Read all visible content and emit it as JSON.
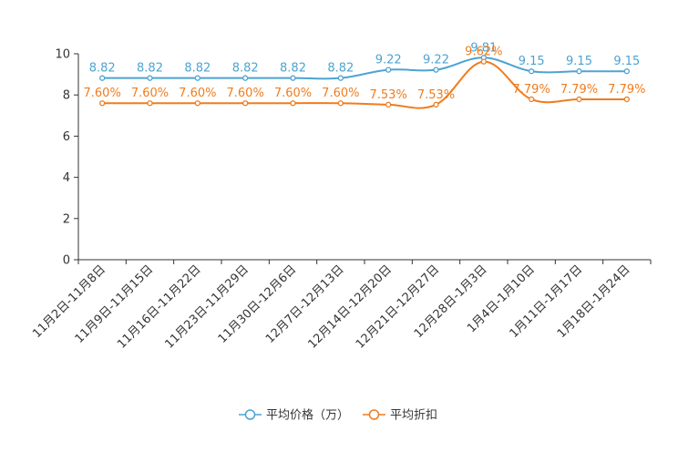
{
  "chart_data": {
    "type": "line",
    "title": "",
    "xlabel": "",
    "ylabel": "",
    "ylim": [
      0,
      10
    ],
    "y_ticks": [
      0,
      2,
      4,
      6,
      8,
      10
    ],
    "grid": false,
    "legend_position": "bottom-center",
    "categories": [
      "11月2日-11月8日",
      "11月9日-11月15日",
      "11月16日-11月22日",
      "11月23日-11月29日",
      "11月30日-12月6日",
      "12月7日-12月13日",
      "12月14日-12月20日",
      "12月21日-12月27日",
      "12月28日-1月3日",
      "1月4日-1月10日",
      "1月11日-1月17日",
      "1月18日-1月24日"
    ],
    "series": [
      {
        "name": "平均价格（万）",
        "color": "#4da3d1",
        "values": [
          8.82,
          8.82,
          8.82,
          8.82,
          8.82,
          8.82,
          9.22,
          9.22,
          9.81,
          9.15,
          9.15,
          9.15
        ],
        "labels": [
          "8.82",
          "8.82",
          "8.82",
          "8.82",
          "8.82",
          "8.82",
          "9.22",
          "9.22",
          "9.81",
          "9.15",
          "9.15",
          "9.15"
        ]
      },
      {
        "name": "平均折扣",
        "color": "#f07c1e",
        "values": [
          7.6,
          7.6,
          7.6,
          7.6,
          7.6,
          7.6,
          7.53,
          7.53,
          9.62,
          7.79,
          7.79,
          7.79
        ],
        "labels": [
          "7.60%",
          "7.60%",
          "7.60%",
          "7.60%",
          "7.60%",
          "7.60%",
          "7.53%",
          "7.53%",
          "9.62%",
          "7.79%",
          "7.79%",
          "7.79%"
        ]
      }
    ]
  }
}
